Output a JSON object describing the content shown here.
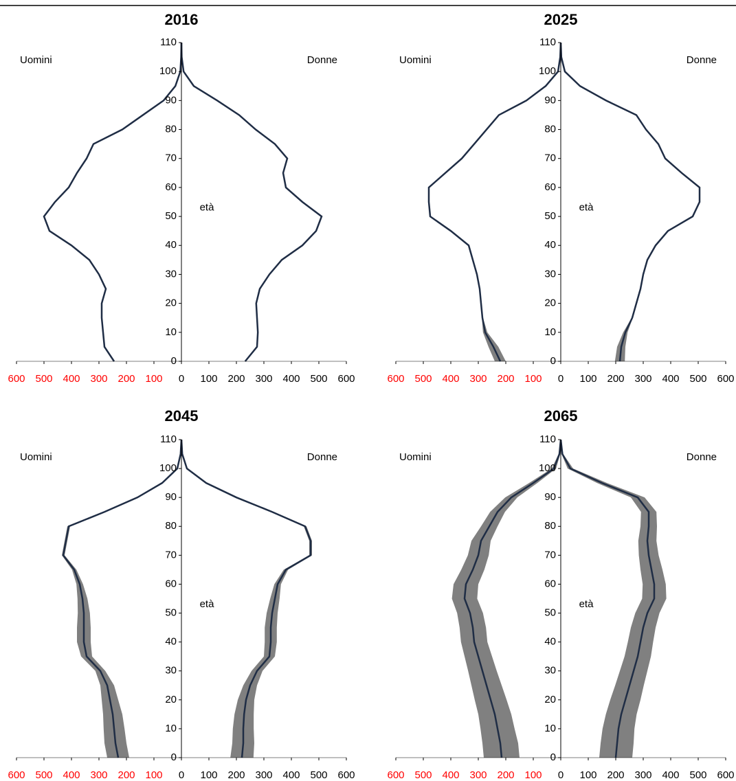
{
  "chart_data": [
    {
      "type": "pyramid",
      "title": "2016",
      "left_label": "Uomini",
      "right_label": "Donne",
      "axis_label": "età",
      "ages": [
        0,
        5,
        10,
        15,
        20,
        25,
        30,
        35,
        40,
        45,
        50,
        55,
        60,
        65,
        70,
        75,
        80,
        85,
        90,
        95,
        100,
        105,
        110
      ],
      "men": [
        245,
        280,
        285,
        290,
        290,
        275,
        300,
        335,
        400,
        480,
        500,
        460,
        410,
        380,
        345,
        320,
        215,
        140,
        65,
        22,
        4,
        1,
        0
      ],
      "women": [
        232,
        275,
        278,
        275,
        272,
        285,
        320,
        365,
        440,
        490,
        510,
        440,
        380,
        370,
        385,
        340,
        270,
        210,
        130,
        45,
        8,
        1,
        0
      ],
      "ylim": [
        0,
        110
      ],
      "yticks": [
        0,
        10,
        20,
        30,
        40,
        50,
        60,
        70,
        80,
        90,
        100,
        110
      ],
      "xlim": [
        0,
        600
      ],
      "xticks_left": [
        600,
        500,
        400,
        300,
        200,
        100
      ],
      "xticks_right": [
        0,
        100,
        200,
        300,
        400,
        500,
        600
      ],
      "left_tick_color": "#ff0000",
      "color": "#1f2d45",
      "band_color": "#808080"
    },
    {
      "type": "pyramid",
      "title": "2025",
      "left_label": "Uomini",
      "right_label": "Donne",
      "axis_label": "età",
      "ages": [
        0,
        5,
        10,
        15,
        20,
        25,
        30,
        35,
        40,
        45,
        50,
        55,
        60,
        65,
        70,
        75,
        80,
        85,
        90,
        95,
        100,
        105,
        110
      ],
      "men": [
        220,
        245,
        275,
        285,
        290,
        295,
        305,
        320,
        335,
        400,
        475,
        480,
        480,
        420,
        360,
        315,
        270,
        225,
        125,
        55,
        10,
        2,
        0
      ],
      "women": [
        215,
        220,
        235,
        260,
        275,
        290,
        300,
        315,
        345,
        390,
        480,
        505,
        505,
        440,
        380,
        355,
        310,
        275,
        165,
        70,
        15,
        2,
        0
      ],
      "men_spread": [
        20,
        18,
        8,
        2,
        0,
        0,
        0,
        0,
        0,
        0,
        0,
        0,
        0,
        0,
        0,
        0,
        0,
        0,
        0,
        0,
        0,
        0,
        0
      ],
      "women_spread": [
        18,
        15,
        8,
        2,
        0,
        0,
        0,
        0,
        0,
        0,
        0,
        0,
        0,
        0,
        0,
        0,
        0,
        0,
        0,
        0,
        0,
        0,
        0
      ],
      "ylim": [
        0,
        110
      ],
      "yticks": [
        0,
        10,
        20,
        30,
        40,
        50,
        60,
        70,
        80,
        90,
        100,
        110
      ],
      "xlim": [
        0,
        600
      ],
      "xticks_left": [
        600,
        500,
        400,
        300,
        200,
        100
      ],
      "xticks_right": [
        0,
        100,
        200,
        300,
        400,
        500,
        600
      ],
      "left_tick_color": "#ff0000",
      "color": "#1f2d45",
      "band_color": "#808080"
    },
    {
      "type": "pyramid",
      "title": "2045",
      "left_label": "Uomini",
      "right_label": "Donne",
      "axis_label": "età",
      "ages": [
        0,
        5,
        10,
        15,
        20,
        25,
        30,
        35,
        40,
        45,
        50,
        55,
        60,
        65,
        70,
        75,
        80,
        85,
        90,
        95,
        100,
        105,
        110
      ],
      "men": [
        230,
        240,
        245,
        250,
        260,
        270,
        295,
        345,
        355,
        355,
        355,
        360,
        370,
        390,
        430,
        420,
        410,
        280,
        160,
        70,
        15,
        3,
        0
      ],
      "women": [
        220,
        225,
        225,
        228,
        235,
        250,
        275,
        320,
        325,
        325,
        330,
        340,
        350,
        380,
        470,
        470,
        450,
        330,
        200,
        90,
        20,
        3,
        0
      ],
      "men_spread": [
        40,
        40,
        38,
        35,
        30,
        25,
        18,
        20,
        25,
        25,
        22,
        18,
        12,
        8,
        5,
        5,
        5,
        5,
        4,
        3,
        2,
        1,
        0
      ],
      "women_spread": [
        42,
        40,
        38,
        35,
        30,
        25,
        20,
        20,
        22,
        22,
        20,
        17,
        12,
        8,
        5,
        5,
        5,
        5,
        4,
        3,
        2,
        1,
        0
      ],
      "ylim": [
        0,
        110
      ],
      "yticks": [
        0,
        10,
        20,
        30,
        40,
        50,
        60,
        70,
        80,
        90,
        100,
        110
      ],
      "xlim": [
        0,
        600
      ],
      "xticks_left": [
        600,
        500,
        400,
        300,
        200,
        100
      ],
      "xticks_right": [
        0,
        100,
        200,
        300,
        400,
        500,
        600
      ],
      "left_tick_color": "#ff0000",
      "color": "#1f2d45",
      "band_color": "#808080"
    },
    {
      "type": "pyramid",
      "title": "2065",
      "left_label": "Uomini",
      "right_label": "Donne",
      "axis_label": "età",
      "ages": [
        0,
        5,
        10,
        15,
        20,
        25,
        30,
        35,
        40,
        45,
        50,
        55,
        60,
        65,
        70,
        75,
        80,
        85,
        90,
        95,
        100,
        105,
        110
      ],
      "men": [
        215,
        220,
        230,
        240,
        255,
        270,
        285,
        300,
        315,
        320,
        330,
        350,
        345,
        320,
        300,
        290,
        260,
        230,
        180,
        100,
        25,
        5,
        0
      ],
      "women": [
        200,
        205,
        210,
        220,
        235,
        250,
        265,
        280,
        290,
        300,
        315,
        340,
        340,
        330,
        320,
        315,
        320,
        320,
        280,
        150,
        35,
        6,
        0
      ],
      "men_spread": [
        65,
        65,
        62,
        60,
        58,
        55,
        52,
        50,
        48,
        48,
        47,
        46,
        45,
        42,
        38,
        35,
        30,
        27,
        22,
        15,
        8,
        3,
        0
      ],
      "women_spread": [
        60,
        60,
        58,
        56,
        55,
        52,
        50,
        48,
        46,
        45,
        44,
        44,
        42,
        40,
        36,
        33,
        30,
        28,
        25,
        18,
        10,
        3,
        0
      ],
      "ylim": [
        0,
        110
      ],
      "yticks": [
        0,
        10,
        20,
        30,
        40,
        50,
        60,
        70,
        80,
        90,
        100,
        110
      ],
      "xlim": [
        0,
        600
      ],
      "xticks_left": [
        600,
        500,
        400,
        300,
        200,
        100
      ],
      "xticks_right": [
        0,
        100,
        200,
        300,
        400,
        500,
        600
      ],
      "left_tick_color": "#ff0000",
      "color": "#1f2d45",
      "band_color": "#808080"
    }
  ]
}
